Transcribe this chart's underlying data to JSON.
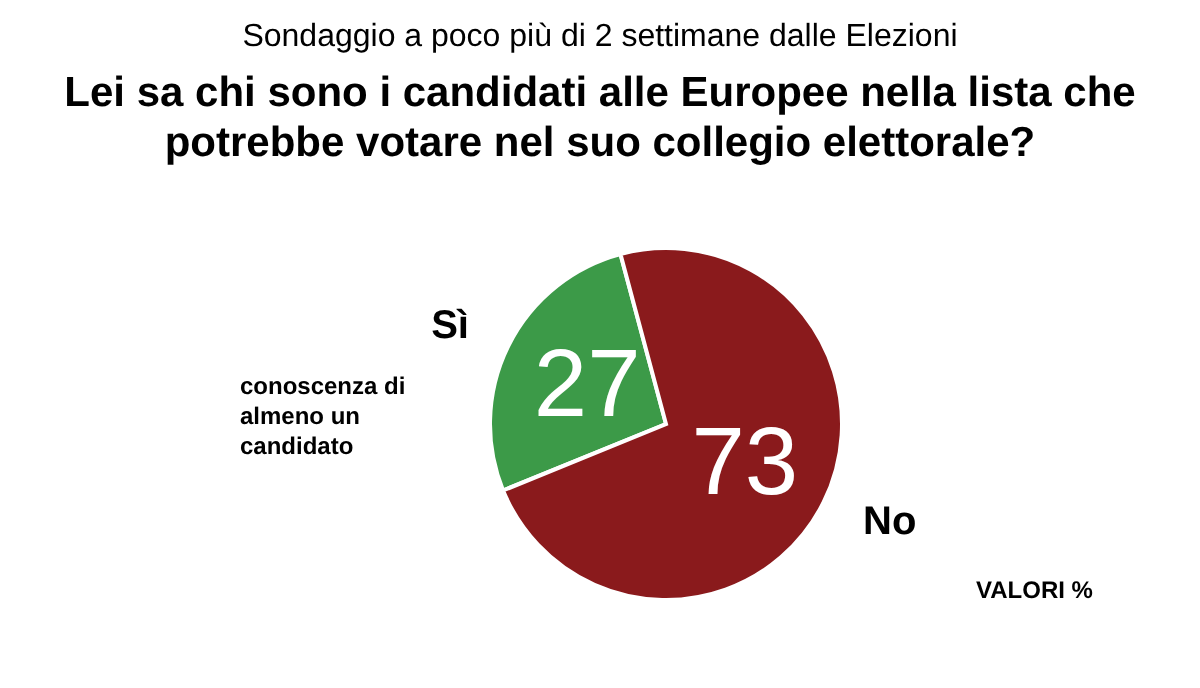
{
  "chart_data": {
    "type": "pie",
    "subtitle": "Sondaggio a poco più di 2 settimane dalle Elezioni",
    "title": "Lei sa chi sono i candidati alle Europee nella lista che potrebbe votare nel suo collegio elettorale?",
    "categories": [
      "Sì",
      "No"
    ],
    "values": [
      27,
      73
    ],
    "colors": [
      "#3c9a48",
      "#8a1a1c"
    ],
    "data_labels": true,
    "annotations": [
      "conoscenza di almeno un candidato",
      "VALORI %"
    ]
  }
}
